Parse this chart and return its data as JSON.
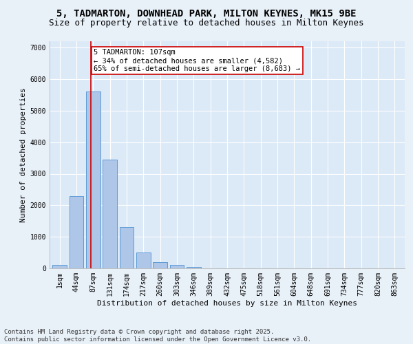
{
  "title": "5, TADMARTON, DOWNHEAD PARK, MILTON KEYNES, MK15 9BE",
  "subtitle": "Size of property relative to detached houses in Milton Keynes",
  "xlabel": "Distribution of detached houses by size in Milton Keynes",
  "ylabel": "Number of detached properties",
  "bar_color": "#aec6e8",
  "bar_edge_color": "#5b9bd5",
  "background_color": "#dce9f7",
  "fig_background_color": "#e8f0f8",
  "grid_color": "#ffffff",
  "categories": [
    "1sqm",
    "44sqm",
    "87sqm",
    "131sqm",
    "174sqm",
    "217sqm",
    "260sqm",
    "303sqm",
    "346sqm",
    "389sqm",
    "432sqm",
    "475sqm",
    "518sqm",
    "561sqm",
    "604sqm",
    "648sqm",
    "691sqm",
    "734sqm",
    "777sqm",
    "820sqm",
    "863sqm"
  ],
  "values": [
    100,
    2300,
    5600,
    3450,
    1300,
    500,
    195,
    105,
    50,
    0,
    0,
    0,
    0,
    0,
    0,
    0,
    0,
    0,
    0,
    0,
    0
  ],
  "vline_x": 1.85,
  "vline_color": "#cc0000",
  "annotation_text": "5 TADMARTON: 107sqm\n← 34% of detached houses are smaller (4,582)\n65% of semi-detached houses are larger (8,683) →",
  "annotation_box_color": "#ffffff",
  "annotation_edge_color": "#cc0000",
  "ylim": [
    0,
    7200
  ],
  "yticks": [
    0,
    1000,
    2000,
    3000,
    4000,
    5000,
    6000,
    7000
  ],
  "footer": "Contains HM Land Registry data © Crown copyright and database right 2025.\nContains public sector information licensed under the Open Government Licence v3.0.",
  "title_fontsize": 10,
  "subtitle_fontsize": 9,
  "axis_label_fontsize": 8,
  "tick_fontsize": 7,
  "annotation_fontsize": 7.5,
  "footer_fontsize": 6.5
}
